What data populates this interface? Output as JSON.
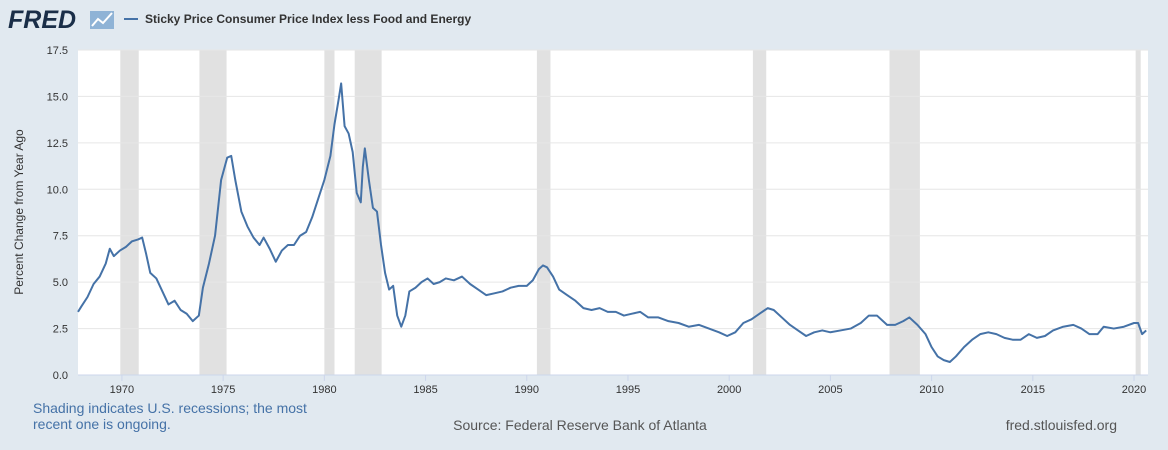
{
  "chart_data": {
    "type": "line",
    "logo": "FRED",
    "series_label": "Sticky Price Consumer Price Index less Food and Energy",
    "ylabel": "Percent Change from Year Ago",
    "note": "Shading indicates U.S. recessions; the most recent one is ongoing.",
    "source": "Source: Federal Reserve Bank of Atlanta",
    "site": "fred.stlouisfed.org",
    "color": "#4572a7",
    "recession_color": "#e1e1e1",
    "grid": true,
    "xlim": [
      1967.83,
      2020.69
    ],
    "xticks": [
      1970,
      1975,
      1980,
      1985,
      1990,
      1995,
      2000,
      2005,
      2010,
      2015,
      2020
    ],
    "ylim": [
      0,
      17.5
    ],
    "yticks": [
      {
        "value": 0,
        "label": "0.0"
      },
      2.5,
      {
        "value": 5,
        "label": "5.0"
      },
      7.5,
      {
        "value": 10,
        "label": "10.0"
      },
      12.5,
      {
        "value": 15,
        "label": "15.0"
      },
      17.5
    ],
    "recessions": [
      [
        1969.92,
        1970.83
      ],
      [
        1973.83,
        1975.17
      ],
      [
        1980.0,
        1980.5
      ],
      [
        1981.5,
        1982.83
      ],
      [
        1990.5,
        1991.17
      ],
      [
        2001.17,
        2001.83
      ],
      [
        2007.92,
        2009.42
      ],
      [
        2020.08,
        2020.33
      ]
    ],
    "x": [
      1967.83,
      1968.0,
      1968.3,
      1968.6,
      1968.9,
      1969.2,
      1969.4,
      1969.6,
      1969.9,
      1970.2,
      1970.5,
      1970.8,
      1971.0,
      1971.2,
      1971.4,
      1971.7,
      1972.0,
      1972.3,
      1972.6,
      1972.9,
      1973.2,
      1973.5,
      1973.8,
      1974.0,
      1974.3,
      1974.6,
      1974.9,
      1975.2,
      1975.4,
      1975.6,
      1975.9,
      1976.2,
      1976.5,
      1976.8,
      1977.0,
      1977.3,
      1977.6,
      1977.9,
      1978.2,
      1978.5,
      1978.8,
      1979.1,
      1979.4,
      1979.7,
      1980.0,
      1980.3,
      1980.5,
      1980.7,
      1980.83,
      1981.0,
      1981.2,
      1981.4,
      1981.6,
      1981.8,
      1981.9,
      1982.0,
      1982.2,
      1982.4,
      1982.6,
      1982.8,
      1983.0,
      1983.2,
      1983.4,
      1983.6,
      1983.8,
      1984.0,
      1984.2,
      1984.5,
      1984.8,
      1985.1,
      1985.4,
      1985.7,
      1986.0,
      1986.4,
      1986.8,
      1987.2,
      1987.6,
      1988.0,
      1988.4,
      1988.8,
      1989.2,
      1989.6,
      1990.0,
      1990.3,
      1990.6,
      1990.8,
      1991.0,
      1991.3,
      1991.6,
      1992.0,
      1992.4,
      1992.8,
      1993.2,
      1993.6,
      1994.0,
      1994.4,
      1994.8,
      1995.2,
      1995.6,
      1996.0,
      1996.5,
      1997.0,
      1997.5,
      1998.0,
      1998.5,
      1999.0,
      1999.5,
      1999.9,
      2000.3,
      2000.7,
      2001.1,
      2001.5,
      2001.9,
      2002.2,
      2002.6,
      2003.0,
      2003.4,
      2003.8,
      2004.2,
      2004.6,
      2005.0,
      2005.5,
      2006.0,
      2006.5,
      2006.9,
      2007.3,
      2007.8,
      2008.2,
      2008.6,
      2008.9,
      2009.3,
      2009.7,
      2010.0,
      2010.3,
      2010.6,
      2010.9,
      2011.2,
      2011.6,
      2012.0,
      2012.4,
      2012.8,
      2013.2,
      2013.6,
      2014.0,
      2014.4,
      2014.8,
      2015.2,
      2015.6,
      2016.0,
      2016.5,
      2017.0,
      2017.4,
      2017.8,
      2018.2,
      2018.5,
      2019.0,
      2019.5,
      2020.0,
      2020.2,
      2020.4,
      2020.6
    ],
    "values": [
      3.4,
      3.7,
      4.2,
      4.9,
      5.3,
      6.0,
      6.8,
      6.4,
      6.7,
      6.9,
      7.2,
      7.3,
      7.4,
      6.5,
      5.5,
      5.2,
      4.5,
      3.8,
      4.0,
      3.5,
      3.3,
      2.9,
      3.2,
      4.7,
      6.0,
      7.5,
      10.5,
      11.7,
      11.8,
      10.5,
      8.8,
      8.0,
      7.4,
      7.0,
      7.4,
      6.8,
      6.1,
      6.7,
      7.0,
      7.0,
      7.5,
      7.7,
      8.5,
      9.5,
      10.5,
      11.8,
      13.5,
      14.8,
      15.7,
      13.4,
      13.0,
      12.0,
      9.8,
      9.3,
      11.2,
      12.2,
      10.5,
      9.0,
      8.8,
      7.0,
      5.5,
      4.6,
      4.8,
      3.2,
      2.6,
      3.2,
      4.5,
      4.7,
      5.0,
      5.2,
      4.9,
      5.0,
      5.2,
      5.1,
      5.3,
      4.9,
      4.6,
      4.3,
      4.4,
      4.5,
      4.7,
      4.8,
      4.8,
      5.1,
      5.7,
      5.9,
      5.8,
      5.3,
      4.6,
      4.3,
      4.0,
      3.6,
      3.5,
      3.6,
      3.4,
      3.4,
      3.2,
      3.3,
      3.4,
      3.1,
      3.1,
      2.9,
      2.8,
      2.6,
      2.7,
      2.5,
      2.3,
      2.1,
      2.3,
      2.8,
      3.0,
      3.3,
      3.6,
      3.5,
      3.1,
      2.7,
      2.4,
      2.1,
      2.3,
      2.4,
      2.3,
      2.4,
      2.5,
      2.8,
      3.2,
      3.2,
      2.7,
      2.7,
      2.9,
      3.1,
      2.7,
      2.2,
      1.5,
      1.0,
      0.8,
      0.7,
      1.0,
      1.5,
      1.9,
      2.2,
      2.3,
      2.2,
      2.0,
      1.9,
      1.9,
      2.2,
      2.0,
      2.1,
      2.4,
      2.6,
      2.7,
      2.5,
      2.2,
      2.2,
      2.6,
      2.5,
      2.6,
      2.8,
      2.8,
      2.2,
      2.4
    ]
  }
}
